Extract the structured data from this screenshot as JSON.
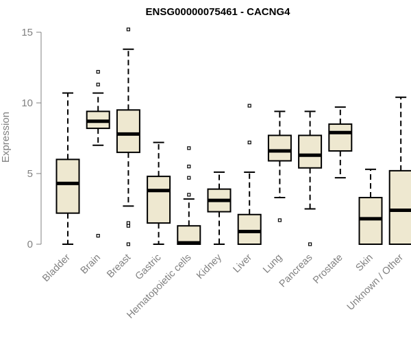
{
  "chart_data": {
    "type": "boxplot",
    "title": "ENSG00000075461 - CACNG4",
    "xlabel": "",
    "ylabel": "Expression",
    "ylim": [
      0,
      15.5
    ],
    "yticks": [
      0,
      5,
      10,
      15
    ],
    "box_color": "#EEE8D0",
    "series": [
      {
        "name": "Bladder",
        "whisker_low": 0,
        "q1": 2.2,
        "median": 4.3,
        "q3": 6.0,
        "whisker_high": 10.7,
        "outliers": []
      },
      {
        "name": "Brain",
        "whisker_low": 7.0,
        "q1": 8.2,
        "median": 8.7,
        "q3": 9.4,
        "whisker_high": 10.7,
        "outliers": [
          12.2,
          11.3,
          0.6
        ]
      },
      {
        "name": "Breast",
        "whisker_low": 2.7,
        "q1": 6.5,
        "median": 7.8,
        "q3": 9.5,
        "whisker_high": 13.8,
        "outliers": [
          15.2,
          1.5,
          1.3,
          0.0
        ]
      },
      {
        "name": "Gastric",
        "whisker_low": 0,
        "q1": 1.5,
        "median": 3.8,
        "q3": 4.8,
        "whisker_high": 7.2,
        "outliers": []
      },
      {
        "name": "Hematopoietic cells",
        "whisker_low": 0,
        "q1": 0,
        "median": 0.1,
        "q3": 1.3,
        "whisker_high": 3.2,
        "outliers": [
          6.8,
          5.5,
          4.7,
          3.5
        ]
      },
      {
        "name": "Kidney",
        "whisker_low": 0,
        "q1": 2.3,
        "median": 3.1,
        "q3": 3.9,
        "whisker_high": 5.1,
        "outliers": []
      },
      {
        "name": "Liver",
        "whisker_low": 0,
        "q1": 0,
        "median": 0.9,
        "q3": 2.1,
        "whisker_high": 5.1,
        "outliers": [
          9.8,
          7.2
        ]
      },
      {
        "name": "Lung",
        "whisker_low": 3.3,
        "q1": 5.9,
        "median": 6.6,
        "q3": 7.7,
        "whisker_high": 9.4,
        "outliers": [
          1.7
        ]
      },
      {
        "name": "Pancreas",
        "whisker_low": 2.5,
        "q1": 5.4,
        "median": 6.3,
        "q3": 7.7,
        "whisker_high": 9.4,
        "outliers": [
          0.0
        ]
      },
      {
        "name": "Prostate",
        "whisker_low": 4.7,
        "q1": 6.6,
        "median": 7.9,
        "q3": 8.5,
        "whisker_high": 9.7,
        "outliers": []
      },
      {
        "name": "Skin",
        "whisker_low": 0,
        "q1": 0,
        "median": 1.8,
        "q3": 3.3,
        "whisker_high": 5.3,
        "outliers": []
      },
      {
        "name": "Unknown / Other",
        "whisker_low": 0,
        "q1": 0,
        "median": 2.4,
        "q3": 5.2,
        "whisker_high": 10.4,
        "outliers": []
      }
    ]
  }
}
